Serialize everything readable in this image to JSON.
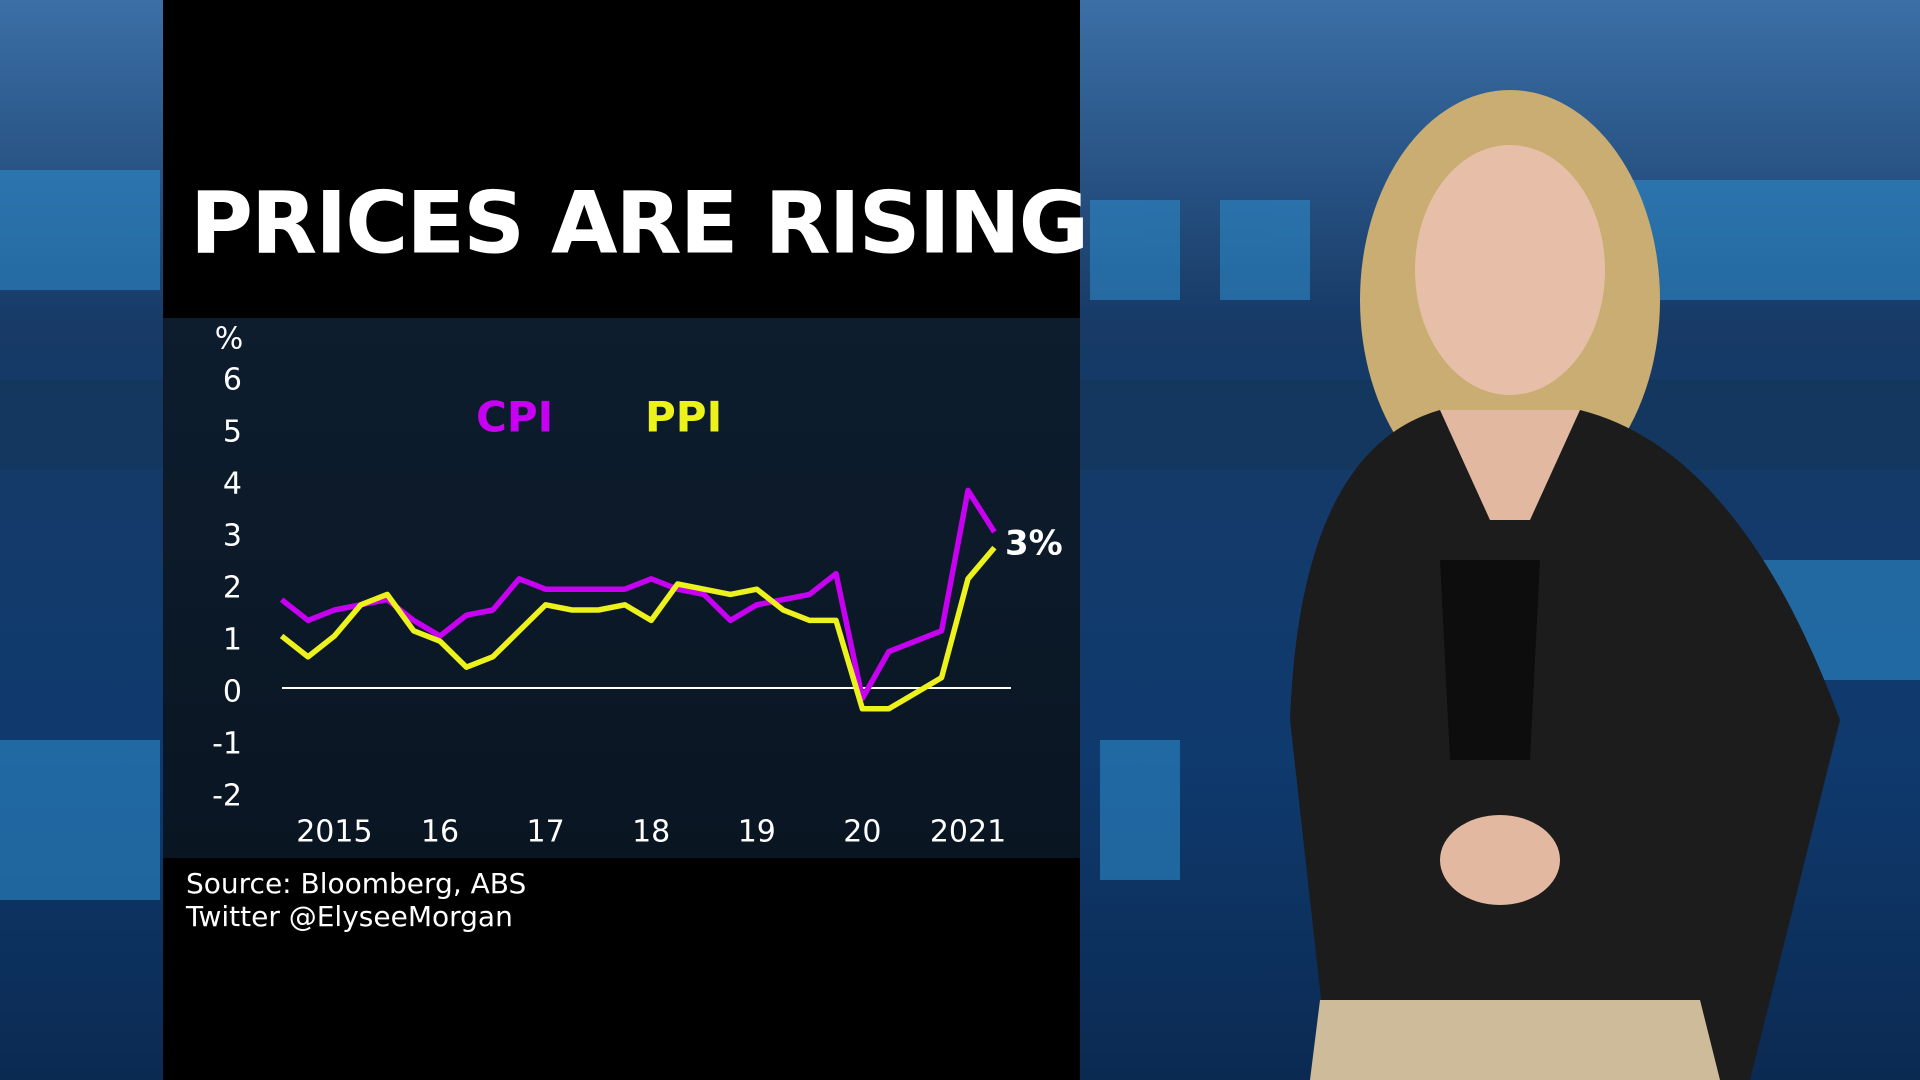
{
  "chart_data": {
    "type": "line",
    "title": "PRICES ARE RISING",
    "y_unit": "%",
    "categories": [
      null,
      null,
      "2015",
      null,
      null,
      null,
      "16",
      null,
      null,
      null,
      "17",
      null,
      null,
      null,
      "18",
      null,
      null,
      null,
      "19",
      null,
      null,
      null,
      "20",
      null,
      null,
      null,
      "2021",
      null
    ],
    "series": [
      {
        "name": "CPI",
        "color": "#c800f2",
        "values": [
          1.7,
          1.3,
          1.5,
          1.6,
          1.7,
          1.3,
          1.0,
          1.4,
          1.5,
          2.1,
          1.9,
          1.9,
          1.9,
          1.9,
          2.1,
          1.9,
          1.8,
          1.3,
          1.6,
          1.7,
          1.8,
          2.2,
          -0.2,
          0.7,
          0.9,
          1.1,
          3.8,
          3.0
        ]
      },
      {
        "name": "PPI",
        "color": "#eef21c",
        "values": [
          1.0,
          0.6,
          1.0,
          1.6,
          1.8,
          1.1,
          0.9,
          0.4,
          0.6,
          1.1,
          1.6,
          1.5,
          1.5,
          1.6,
          1.3,
          2.0,
          1.9,
          1.8,
          1.9,
          1.5,
          1.3,
          1.3,
          -0.4,
          -0.4,
          -0.1,
          0.2,
          2.1,
          2.7
        ]
      }
    ],
    "ylim": [
      -2,
      6
    ],
    "yticks": [
      -2,
      -1,
      0,
      1,
      2,
      3,
      4,
      5,
      6
    ],
    "negative_tick_color": "#e0202a",
    "annotation": "3%",
    "source": [
      "Source: Bloomberg, ABS",
      "Twitter @ElyseeMorgan"
    ]
  }
}
